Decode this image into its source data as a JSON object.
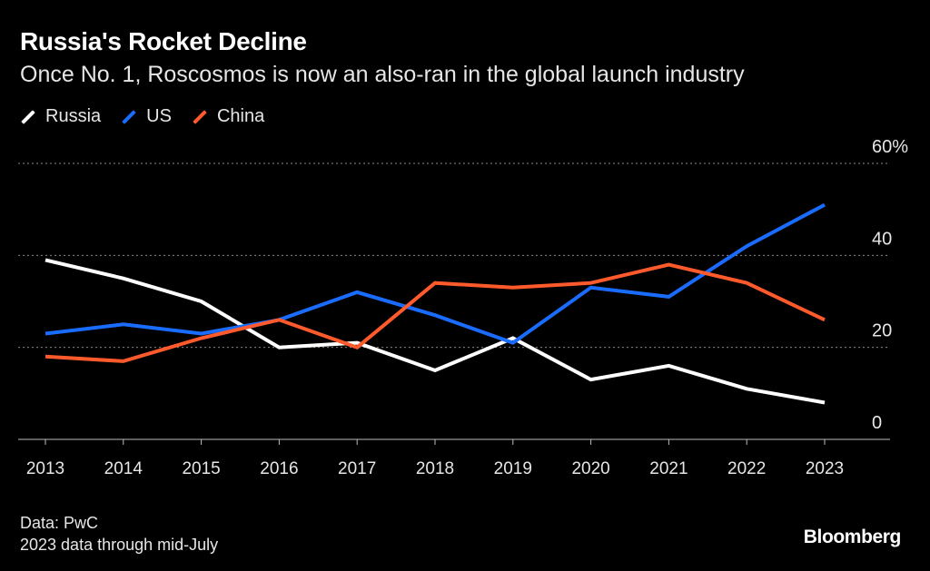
{
  "title": "Russia's Rocket Decline",
  "subtitle": "Once No. 1, Roscosmos is now an also-ran in the global launch industry",
  "legend": [
    {
      "label": "Russia",
      "color": "#ffffff"
    },
    {
      "label": "US",
      "color": "#1a6cff"
    },
    {
      "label": "China",
      "color": "#ff5a2c"
    }
  ],
  "footer": {
    "source": "Data: PwC",
    "note": "2023 data through mid-July",
    "brand": "Bloomberg"
  },
  "chart_data": {
    "type": "line",
    "title": "Russia's Rocket Decline",
    "xlabel": "",
    "ylabel": "",
    "x": [
      "2013",
      "2014",
      "2015",
      "2016",
      "2017",
      "2018",
      "2019",
      "2020",
      "2021",
      "2022",
      "2023"
    ],
    "ylim": [
      0,
      60
    ],
    "yticks": [
      0,
      20,
      40,
      60
    ],
    "ytick_labels": [
      "0",
      "20",
      "40",
      "60%"
    ],
    "grid": true,
    "series": [
      {
        "name": "Russia",
        "color": "#ffffff",
        "values": [
          39,
          35,
          30,
          20,
          21,
          15,
          22,
          13,
          16,
          11,
          8
        ]
      },
      {
        "name": "US",
        "color": "#1a6cff",
        "values": [
          23,
          25,
          23,
          26,
          32,
          27,
          21,
          33,
          31,
          42,
          51
        ]
      },
      {
        "name": "China",
        "color": "#ff5a2c",
        "values": [
          18,
          17,
          22,
          26,
          20,
          34,
          33,
          34,
          38,
          34,
          26
        ]
      }
    ]
  }
}
